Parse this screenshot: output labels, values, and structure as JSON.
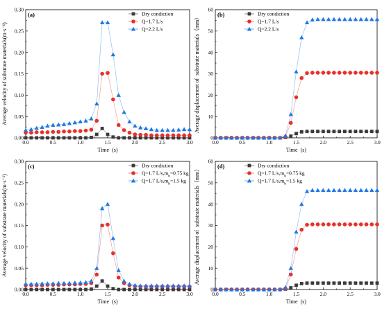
{
  "chart_data": [
    {
      "type": "line",
      "panel_label": "(a)",
      "xlabel": "Time (s)",
      "ylabel": "Average velocity of substrate materials(m·s⁻¹)",
      "xlim": [
        0,
        3.0
      ],
      "ylim": [
        0,
        0.3
      ],
      "xticks": [
        "0.0",
        "0.5",
        "1.0",
        "1.5",
        "2.0",
        "2.5",
        "3.0"
      ],
      "yticks": [
        "0.00",
        "0.05",
        "0.10",
        "0.15",
        "0.20",
        "0.25",
        "0.30"
      ],
      "legend_position": "top-right",
      "x": [
        0.0,
        0.1,
        0.2,
        0.3,
        0.4,
        0.5,
        0.6,
        0.7,
        0.8,
        0.9,
        1.0,
        1.1,
        1.2,
        1.3,
        1.4,
        1.5,
        1.6,
        1.7,
        1.8,
        1.9,
        2.0,
        2.1,
        2.2,
        2.3,
        2.4,
        2.5,
        2.6,
        2.7,
        2.8,
        2.9,
        3.0
      ],
      "series": [
        {
          "name": "Dry condiction",
          "marker": "square",
          "color": "#3a3a3a",
          "values": [
            0,
            0,
            0,
            0,
            0,
            0,
            0,
            0,
            0,
            0,
            0,
            0,
            0.001,
            0.008,
            0.022,
            0.008,
            0.002,
            0,
            0,
            0,
            0,
            0,
            0,
            0,
            0,
            0,
            0,
            0,
            0,
            0,
            0
          ]
        },
        {
          "name": "Q=1.7 L/s",
          "marker": "circle",
          "color": "#e8302a",
          "values": [
            0.012,
            0.012,
            0.013,
            0.013,
            0.013,
            0.014,
            0.014,
            0.015,
            0.015,
            0.016,
            0.016,
            0.017,
            0.019,
            0.04,
            0.15,
            0.152,
            0.09,
            0.03,
            0.018,
            0.012,
            0.008,
            0.007,
            0.007,
            0.006,
            0.006,
            0.006,
            0.006,
            0.006,
            0.006,
            0.006,
            0.006
          ]
        },
        {
          "name": "Q=2.2 L/s",
          "marker": "triangle",
          "color": "#1e78e0",
          "values": [
            0.018,
            0.02,
            0.023,
            0.025,
            0.028,
            0.03,
            0.031,
            0.032,
            0.034,
            0.036,
            0.038,
            0.04,
            0.045,
            0.08,
            0.27,
            0.27,
            0.195,
            0.1,
            0.06,
            0.038,
            0.028,
            0.024,
            0.022,
            0.02,
            0.018,
            0.018,
            0.018,
            0.018,
            0.019,
            0.02,
            0.02
          ]
        }
      ]
    },
    {
      "type": "line",
      "panel_label": "(b)",
      "xlabel": "Time (s)",
      "ylabel": "Average displacement of substrate materials（mm）",
      "xlim": [
        0,
        3.0
      ],
      "ylim": [
        0,
        60
      ],
      "xticks": [
        "0.0",
        "0.5",
        "1.0",
        "1.5",
        "2.0",
        "2.5",
        "3.0"
      ],
      "yticks": [
        "0",
        "10",
        "20",
        "30",
        "40",
        "50",
        "60"
      ],
      "legend_position": "top-left",
      "x": [
        0.0,
        0.1,
        0.2,
        0.3,
        0.4,
        0.5,
        0.6,
        0.7,
        0.8,
        0.9,
        1.0,
        1.1,
        1.2,
        1.3,
        1.4,
        1.5,
        1.6,
        1.7,
        1.8,
        1.9,
        2.0,
        2.1,
        2.2,
        2.3,
        2.4,
        2.5,
        2.6,
        2.7,
        2.8,
        2.9,
        3.0
      ],
      "series": [
        {
          "name": "Dry condiction",
          "marker": "square",
          "color": "#3a3a3a",
          "values": [
            0,
            0,
            0,
            0,
            0,
            0,
            0,
            0,
            0,
            0,
            0,
            0,
            0,
            0.2,
            0.8,
            2.0,
            2.8,
            3.0,
            3.0,
            3.0,
            3.0,
            3.0,
            3.0,
            3.0,
            3.0,
            3.0,
            3.0,
            3.0,
            3.0,
            3.0,
            3.0
          ]
        },
        {
          "name": "Q=1.7 L/s",
          "marker": "circle",
          "color": "#e8302a",
          "values": [
            0,
            0,
            0,
            0,
            0,
            0,
            0,
            0,
            0,
            0,
            0,
            0,
            0,
            0.5,
            7.0,
            19.0,
            28.0,
            30.3,
            30.5,
            30.5,
            30.5,
            30.5,
            30.5,
            30.5,
            30.5,
            30.5,
            30.5,
            30.5,
            30.5,
            30.5,
            30.5
          ]
        },
        {
          "name": "Q=2.2 L/s",
          "marker": "triangle",
          "color": "#1e78e0",
          "values": [
            0,
            0,
            0,
            0,
            0,
            0,
            0,
            0,
            0,
            0,
            0,
            0,
            0,
            1.0,
            11.0,
            31.0,
            47.0,
            54.0,
            55.3,
            55.5,
            55.5,
            55.5,
            55.5,
            55.5,
            55.5,
            55.5,
            55.5,
            55.5,
            55.5,
            55.5,
            55.5
          ]
        }
      ]
    },
    {
      "type": "line",
      "panel_label": "(c)",
      "xlabel": "Time (s)",
      "ylabel": "Average velocity of substrate materials(m·s⁻¹)",
      "xlim": [
        0,
        3.0
      ],
      "ylim": [
        0,
        0.3
      ],
      "xticks": [
        "0.0",
        "0.5",
        "1.0",
        "1.5",
        "2.0",
        "2.5",
        "3.0"
      ],
      "yticks": [
        "0.00",
        "0.05",
        "0.10",
        "0.15",
        "0.20",
        "0.25",
        "0.30"
      ],
      "legend_position": "top-right",
      "x": [
        0.0,
        0.1,
        0.2,
        0.3,
        0.4,
        0.5,
        0.6,
        0.7,
        0.8,
        0.9,
        1.0,
        1.1,
        1.2,
        1.3,
        1.4,
        1.5,
        1.6,
        1.7,
        1.8,
        1.9,
        2.0,
        2.1,
        2.2,
        2.3,
        2.4,
        2.5,
        2.6,
        2.7,
        2.8,
        2.9,
        3.0
      ],
      "series": [
        {
          "name": "Dry condiction",
          "marker": "square",
          "color": "#3a3a3a",
          "values": [
            0,
            0,
            0,
            0,
            0,
            0,
            0,
            0,
            0,
            0,
            0,
            0,
            0.001,
            0.008,
            0.02,
            0.008,
            0.002,
            0,
            0,
            0,
            0,
            0,
            0,
            0,
            0,
            0,
            0,
            0,
            0,
            0,
            0
          ]
        },
        {
          "name": "Q=1.7 L/s,mb=0.75 kg",
          "label_main": "Q=1.7 L/s,m",
          "label_sub": "b",
          "label_tail": "=0.75 kg",
          "marker": "circle",
          "color": "#e8302a",
          "values": [
            0.01,
            0.01,
            0.01,
            0.01,
            0.011,
            0.011,
            0.011,
            0.012,
            0.012,
            0.012,
            0.013,
            0.013,
            0.015,
            0.035,
            0.15,
            0.152,
            0.085,
            0.028,
            0.015,
            0.01,
            0.008,
            0.007,
            0.007,
            0.007,
            0.007,
            0.007,
            0.007,
            0.007,
            0.007,
            0.007,
            0.007
          ]
        },
        {
          "name": "Q=1.7 L/s,mb=1.5 kg",
          "label_main": "Q=1.7 L/s,m",
          "label_sub": "b",
          "label_tail": "=1.5 kg",
          "marker": "triangle",
          "color": "#1e78e0",
          "values": [
            0.013,
            0.013,
            0.013,
            0.014,
            0.014,
            0.014,
            0.015,
            0.015,
            0.015,
            0.016,
            0.016,
            0.017,
            0.02,
            0.05,
            0.19,
            0.2,
            0.12,
            0.045,
            0.02,
            0.013,
            0.01,
            0.009,
            0.009,
            0.009,
            0.009,
            0.009,
            0.009,
            0.009,
            0.009,
            0.009,
            0.009
          ]
        }
      ]
    },
    {
      "type": "line",
      "panel_label": "(d)",
      "xlabel": "Time (s)",
      "ylabel": "Average displacement of substrate materials（mm）",
      "xlim": [
        0,
        3.0
      ],
      "ylim": [
        0,
        60
      ],
      "xticks": [
        "0.0",
        "0.5",
        "1.0",
        "1.5",
        "2.0",
        "2.5",
        "3.0"
      ],
      "yticks": [
        "0",
        "10",
        "20",
        "30",
        "40",
        "50",
        "60"
      ],
      "legend_position": "top-left",
      "x": [
        0.0,
        0.1,
        0.2,
        0.3,
        0.4,
        0.5,
        0.6,
        0.7,
        0.8,
        0.9,
        1.0,
        1.1,
        1.2,
        1.3,
        1.4,
        1.5,
        1.6,
        1.7,
        1.8,
        1.9,
        2.0,
        2.1,
        2.2,
        2.3,
        2.4,
        2.5,
        2.6,
        2.7,
        2.8,
        2.9,
        3.0
      ],
      "series": [
        {
          "name": "Dry condiction",
          "marker": "square",
          "color": "#3a3a3a",
          "values": [
            0,
            0,
            0,
            0,
            0,
            0,
            0,
            0,
            0,
            0,
            0,
            0,
            0,
            0.2,
            0.8,
            2.0,
            2.8,
            3.0,
            3.0,
            3.0,
            3.0,
            3.0,
            3.0,
            3.0,
            3.0,
            3.0,
            3.0,
            3.0,
            3.0,
            3.0,
            3.0
          ]
        },
        {
          "name": "Q=1.7 L/s,mb=0.75 kg",
          "label_main": "Q=1.7 L/s,m",
          "label_sub": "b",
          "label_tail": "=0.75 kg",
          "marker": "circle",
          "color": "#e8302a",
          "values": [
            0,
            0,
            0,
            0,
            0,
            0,
            0,
            0,
            0,
            0,
            0,
            0,
            0,
            0.5,
            7.0,
            19.0,
            28.0,
            30.3,
            30.5,
            30.5,
            30.5,
            30.5,
            30.5,
            30.5,
            30.5,
            30.5,
            30.5,
            30.5,
            30.5,
            30.5,
            30.5
          ]
        },
        {
          "name": "Q=1.7 L/s,mb=1.5 kg",
          "label_main": "Q=1.7 L/s,m",
          "label_sub": "b",
          "label_tail": "=1.5 kg",
          "marker": "triangle",
          "color": "#1e78e0",
          "values": [
            0,
            0,
            0,
            0,
            0,
            0,
            0,
            0,
            0,
            0,
            0,
            0,
            0,
            1.0,
            10.0,
            27.0,
            40.0,
            46.0,
            46.5,
            46.5,
            46.5,
            46.5,
            46.5,
            46.5,
            46.5,
            46.5,
            46.5,
            46.5,
            46.5,
            46.5,
            46.5
          ]
        }
      ]
    }
  ]
}
